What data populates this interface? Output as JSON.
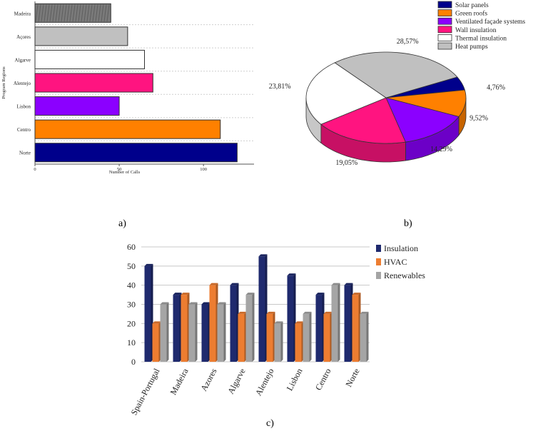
{
  "chart_data": [
    {
      "type": "bar",
      "orientation": "horizontal",
      "panel_label": "a)",
      "title": "",
      "xlabel": "Number of Calls",
      "ylabel": "Program Regions",
      "xlim": [
        0,
        130
      ],
      "xticks": [
        0,
        50,
        100
      ],
      "categories": [
        "Madeira",
        "Açores",
        "Algarve",
        "Alentejo",
        "Lisbon",
        "Centro",
        "Norte"
      ],
      "values": [
        45,
        55,
        65,
        70,
        50,
        110,
        120
      ],
      "colors": [
        "#7a7a7a",
        "#c0c0c0",
        "#ffffff",
        "#ff1480",
        "#8b00ff",
        "#ff8000",
        "#00008b"
      ]
    },
    {
      "type": "pie",
      "panel_label": "b)",
      "title": "",
      "legend_position": "top-right",
      "labels": [
        "Solar panels",
        "Green roofs",
        "Ventilated façade systems",
        "Wall insulation",
        "Thermal insulation",
        "Heat pumps"
      ],
      "values": [
        4.76,
        9.52,
        14.29,
        19.05,
        23.81,
        28.57
      ],
      "value_labels": [
        "4,76%",
        "9,52%",
        "14,29%",
        "19,05%",
        "23,81%",
        "28,57%"
      ],
      "colors": [
        "#00008b",
        "#ff8000",
        "#8b00ff",
        "#ff1480",
        "#ffffff",
        "#c0c0c0"
      ]
    },
    {
      "type": "bar",
      "orientation": "vertical",
      "panel_label": "c)",
      "title": "",
      "xlabel": "",
      "ylabel": "",
      "ylim": [
        0,
        60
      ],
      "yticks": [
        "0",
        "10",
        "20",
        "30",
        "40",
        "50",
        "60"
      ],
      "categories": [
        "Spain-Portugal",
        "Madeira",
        "Azores",
        "Algarve",
        "Alentejo",
        "Lisbon",
        "Centro",
        "Norte"
      ],
      "series": [
        {
          "name": "Insulation",
          "color": "#1f2a6e",
          "values": [
            50,
            35,
            30,
            40,
            55,
            45,
            35,
            40
          ]
        },
        {
          "name": "HVAC",
          "color": "#ed7d31",
          "values": [
            20,
            35,
            40,
            25,
            25,
            20,
            25,
            35
          ]
        },
        {
          "name": "Renewables",
          "color": "#a5a5a5",
          "values": [
            30,
            30,
            30,
            35,
            20,
            25,
            40,
            25
          ]
        }
      ]
    }
  ]
}
